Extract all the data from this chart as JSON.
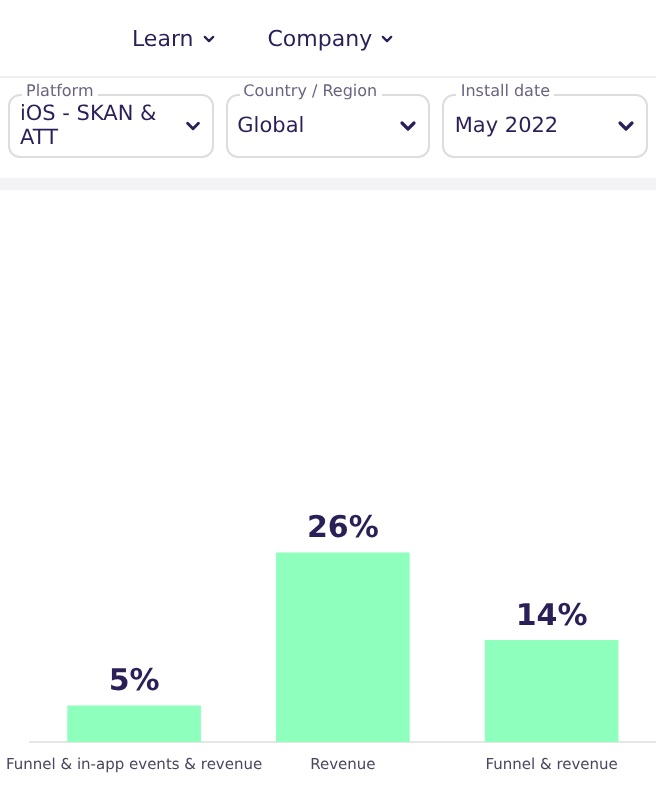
{
  "chart_data": {
    "type": "bar",
    "categories": [
      "Funnel & in-app events & revenue",
      "Revenue",
      "Funnel & revenue"
    ],
    "values": [
      5,
      26,
      14
    ],
    "color": "#8effbd",
    "value_labels": [
      "5%",
      "26%",
      "14%"
    ],
    "grid": false,
    "legend": false,
    "tick_labels": "x",
    "annotations": [
      "Learn",
      "Company",
      "Platform",
      "iOS - SKAN & ATT",
      "Country / Region",
      "Global",
      "Install date",
      "May 2022"
    ]
  }
}
